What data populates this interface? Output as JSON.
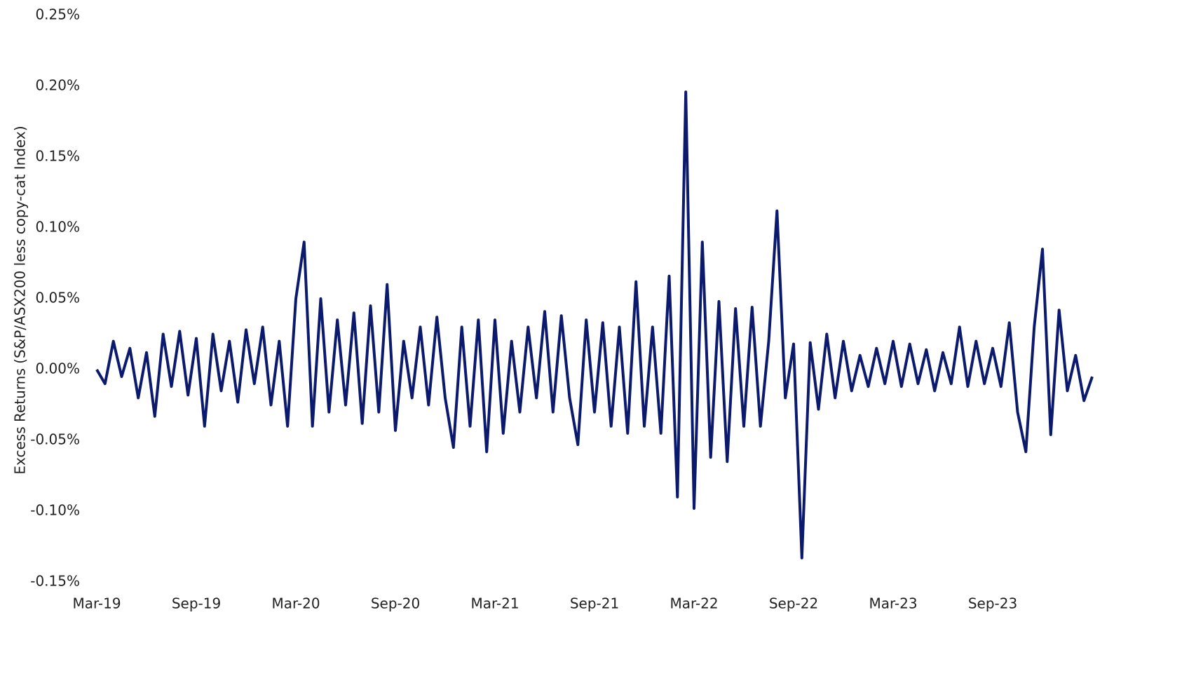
{
  "chart_data": {
    "type": "line",
    "y_label": "Excess Returns (S&P/ASX200 less copy-cat Index)",
    "categories": [
      "Mar-19",
      null,
      null,
      null,
      null,
      null,
      null,
      null,
      null,
      null,
      null,
      null,
      "Sep-19",
      null,
      null,
      null,
      null,
      null,
      null,
      null,
      null,
      null,
      null,
      null,
      "Mar-20",
      null,
      null,
      null,
      null,
      null,
      null,
      null,
      null,
      null,
      null,
      null,
      "Sep-20",
      null,
      null,
      null,
      null,
      null,
      null,
      null,
      null,
      null,
      null,
      null,
      "Mar-21",
      null,
      null,
      null,
      null,
      null,
      null,
      null,
      null,
      null,
      null,
      null,
      "Sep-21",
      null,
      null,
      null,
      null,
      null,
      null,
      null,
      null,
      null,
      null,
      null,
      "Mar-22",
      null,
      null,
      null,
      null,
      null,
      null,
      null,
      null,
      null,
      null,
      null,
      "Sep-22",
      null,
      null,
      null,
      null,
      null,
      null,
      null,
      null,
      null,
      null,
      null,
      "Mar-23",
      null,
      null,
      null,
      null,
      null,
      null,
      null,
      null,
      null,
      null,
      null,
      "Sep-23",
      null,
      null,
      null,
      null,
      null,
      null,
      null,
      null,
      null,
      null,
      null,
      null
    ],
    "series": [
      {
        "color": "#0c1a6e",
        "values": [
          0,
          -0.01,
          0.02,
          -0.005,
          0.015,
          -0.02,
          0.012,
          -0.033,
          0.025,
          -0.012,
          0.027,
          -0.018,
          0.022,
          -0.04,
          0.025,
          -0.015,
          0.02,
          -0.023,
          0.028,
          -0.01,
          0.03,
          -0.025,
          0.02,
          -0.04,
          0.05,
          0.09,
          -0.04,
          0.05,
          -0.03,
          0.035,
          -0.025,
          0.04,
          -0.038,
          0.045,
          -0.03,
          0.06,
          -0.043,
          0.02,
          -0.02,
          0.03,
          -0.025,
          0.037,
          -0.02,
          -0.055,
          0.03,
          -0.04,
          0.035,
          -0.058,
          0.035,
          -0.045,
          0.02,
          -0.03,
          0.03,
          -0.02,
          0.041,
          -0.03,
          0.038,
          -0.02,
          -0.053,
          0.035,
          -0.03,
          0.033,
          -0.04,
          0.03,
          -0.045,
          0.062,
          -0.04,
          0.03,
          -0.045,
          0.066,
          -0.09,
          0.196,
          -0.098,
          0.09,
          -0.062,
          0.048,
          -0.065,
          0.043,
          -0.04,
          0.044,
          -0.04,
          0.02,
          0.112,
          -0.02,
          0.018,
          -0.133,
          0.019,
          -0.028,
          0.025,
          -0.02,
          0.02,
          -0.015,
          0.01,
          -0.012,
          0.015,
          -0.01,
          0.02,
          -0.012,
          0.018,
          -0.01,
          0.014,
          -0.015,
          0.012,
          -0.01,
          0.03,
          -0.012,
          0.02,
          -0.01,
          0.015,
          -0.012,
          0.033,
          -0.03,
          -0.058,
          0.03,
          0.085,
          -0.046,
          0.042,
          -0.015,
          0.01,
          -0.022,
          -0.005
        ]
      }
    ],
    "ylim": [
      -0.15,
      0.25
    ],
    "yticks": [
      {
        "value": -0.15,
        "label": "-0.15%"
      },
      {
        "value": -0.1,
        "label": "-0.10%"
      },
      {
        "value": -0.05,
        "label": "-0.05%"
      },
      {
        "value": 0,
        "label": "0.00%"
      },
      {
        "value": 0.05,
        "label": "0.05%"
      },
      {
        "value": 0.1,
        "label": "0.10%"
      },
      {
        "value": 0.15,
        "label": "0.15%"
      },
      {
        "value": 0.2,
        "label": "0.20%"
      },
      {
        "value": 0.25,
        "label": "0.25%"
      }
    ],
    "grid": false
  }
}
